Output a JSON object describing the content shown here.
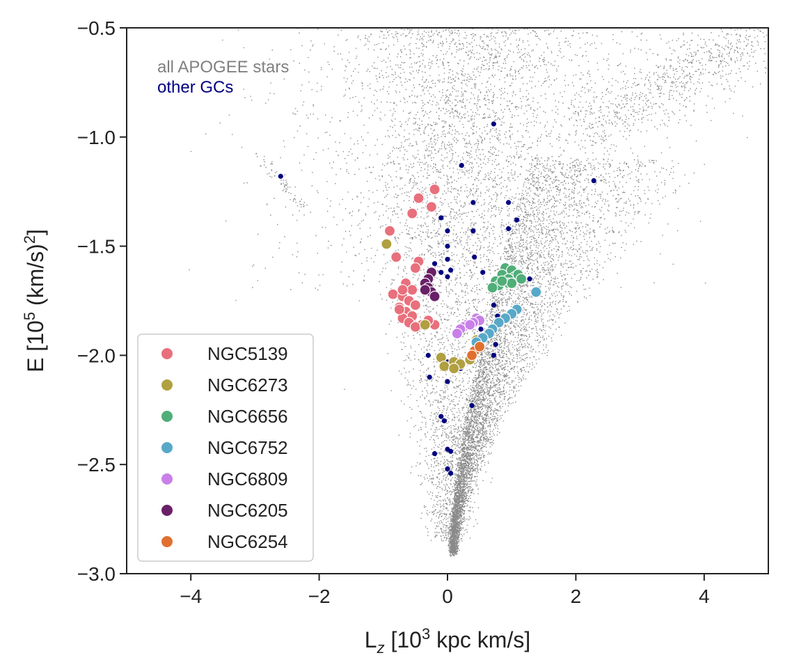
{
  "chart_data": {
    "type": "scatter",
    "xlabel_main": "L",
    "xlabel_sub": "z",
    "xlabel_rest": " [10",
    "xlabel_sup": "3",
    "xlabel_end": " kpc km/s]",
    "ylabel_main": "E [10",
    "ylabel_sup": "5",
    "ylabel_mid": " (km/s)",
    "ylabel_sup2": "2",
    "ylabel_end": "]",
    "xlim": [
      -5,
      5
    ],
    "ylim": [
      -3.0,
      -0.5
    ],
    "x_ticks": [
      -4,
      -2,
      0,
      2,
      4
    ],
    "x_tick_labels": [
      "−4",
      "−2",
      "0",
      "2",
      "4"
    ],
    "y_ticks": [
      -3.0,
      -2.5,
      -2.0,
      -1.5,
      -1.0,
      -0.5
    ],
    "y_tick_labels": [
      "−3.0",
      "−2.5",
      "−2.0",
      "−1.5",
      "−1.0",
      "−0.5"
    ],
    "grid": false,
    "background_label": {
      "text": "all APOGEE stars",
      "color": "#808080"
    },
    "other_label": {
      "text": "other GCs",
      "color": "#000080"
    },
    "legend_position": "lower-left",
    "other_gcs": {
      "name": "other GCs",
      "color": "#000080",
      "points": [
        [
          -2.6,
          -1.18
        ],
        [
          0.72,
          -0.94
        ],
        [
          2.28,
          -1.2
        ],
        [
          0.22,
          -1.13
        ],
        [
          -0.1,
          -1.37
        ],
        [
          0.4,
          -1.3
        ],
        [
          0.95,
          -1.3
        ],
        [
          1.08,
          -1.38
        ],
        [
          0.0,
          -1.43
        ],
        [
          0.4,
          -1.43
        ],
        [
          0.95,
          -1.42
        ],
        [
          0.0,
          -1.5
        ],
        [
          0.42,
          -1.55
        ],
        [
          0.0,
          -1.56
        ],
        [
          -0.2,
          -1.58
        ],
        [
          -0.1,
          -1.62
        ],
        [
          0.05,
          -1.61
        ],
        [
          0.0,
          -1.64
        ],
        [
          0.55,
          -1.62
        ],
        [
          1.28,
          -1.65
        ],
        [
          0.72,
          -1.77
        ],
        [
          0.78,
          -1.82
        ],
        [
          0.52,
          -1.88
        ],
        [
          0.42,
          -1.92
        ],
        [
          0.75,
          -1.95
        ],
        [
          0.72,
          -2.0
        ],
        [
          -0.3,
          -2.0
        ],
        [
          0.0,
          -2.03
        ],
        [
          0.2,
          -2.06
        ],
        [
          -0.28,
          -2.1
        ],
        [
          0.0,
          -2.12
        ],
        [
          0.38,
          -2.23
        ],
        [
          -0.1,
          -2.28
        ],
        [
          -0.05,
          -2.3
        ],
        [
          -0.2,
          -2.45
        ],
        [
          0.0,
          -2.43
        ],
        [
          0.05,
          -2.44
        ],
        [
          0.0,
          -2.52
        ],
        [
          0.05,
          -2.54
        ]
      ]
    },
    "series": [
      {
        "name": "NGC5139",
        "color": "#e8707c",
        "points": [
          [
            -0.2,
            -1.24
          ],
          [
            -0.45,
            -1.28
          ],
          [
            -0.25,
            -1.32
          ],
          [
            -0.55,
            -1.35
          ],
          [
            -0.9,
            -1.43
          ],
          [
            -0.8,
            -1.55
          ],
          [
            -0.45,
            -1.57
          ],
          [
            -0.5,
            -1.6
          ],
          [
            -0.65,
            -1.67
          ],
          [
            -0.55,
            -1.7
          ],
          [
            -0.85,
            -1.72
          ],
          [
            -0.7,
            -1.73
          ],
          [
            -0.6,
            -1.75
          ],
          [
            -0.75,
            -1.78
          ],
          [
            -0.65,
            -1.8
          ],
          [
            -0.55,
            -1.82
          ],
          [
            -0.7,
            -1.83
          ],
          [
            -0.6,
            -1.85
          ],
          [
            -0.4,
            -1.86
          ],
          [
            -0.2,
            -1.86
          ],
          [
            -0.3,
            -1.84
          ],
          [
            -0.5,
            -1.87
          ],
          [
            -0.75,
            -1.79
          ],
          [
            -0.5,
            -1.77
          ],
          [
            -0.7,
            -1.7
          ]
        ]
      },
      {
        "name": "NGC6273",
        "color": "#b0a040",
        "points": [
          [
            -0.95,
            -1.49
          ],
          [
            -0.35,
            -1.86
          ],
          [
            0.45,
            -1.93
          ],
          [
            -0.1,
            -2.01
          ],
          [
            0.1,
            -2.03
          ],
          [
            0.2,
            -2.04
          ],
          [
            -0.05,
            -2.05
          ],
          [
            0.35,
            -2.02
          ],
          [
            0.1,
            -2.06
          ]
        ]
      },
      {
        "name": "NGC6656",
        "color": "#50ae78",
        "points": [
          [
            0.9,
            -1.6
          ],
          [
            1.0,
            -1.61
          ],
          [
            0.85,
            -1.63
          ],
          [
            1.05,
            -1.64
          ],
          [
            0.95,
            -1.65
          ],
          [
            0.75,
            -1.66
          ],
          [
            1.1,
            -1.63
          ],
          [
            0.8,
            -1.68
          ],
          [
            0.95,
            -1.67
          ],
          [
            0.7,
            -1.69
          ],
          [
            1.0,
            -1.67
          ],
          [
            1.15,
            -1.65
          ],
          [
            0.85,
            -1.66
          ]
        ]
      },
      {
        "name": "NGC6752",
        "color": "#58a8c8",
        "points": [
          [
            1.38,
            -1.71
          ],
          [
            1.08,
            -1.79
          ],
          [
            1.0,
            -1.81
          ],
          [
            0.9,
            -1.83
          ],
          [
            0.8,
            -1.85
          ],
          [
            0.7,
            -1.88
          ],
          [
            0.65,
            -1.9
          ],
          [
            0.55,
            -1.92
          ],
          [
            0.45,
            -1.94
          ]
        ]
      },
      {
        "name": "NGC6809",
        "color": "#c880e8",
        "points": [
          [
            0.45,
            -1.83
          ],
          [
            0.5,
            -1.84
          ],
          [
            0.4,
            -1.85
          ],
          [
            0.3,
            -1.86
          ],
          [
            0.25,
            -1.87
          ],
          [
            0.2,
            -1.88
          ],
          [
            0.15,
            -1.9
          ],
          [
            0.35,
            -1.86
          ]
        ]
      },
      {
        "name": "NGC6205",
        "color": "#6a2068",
        "points": [
          [
            -0.25,
            -1.62
          ],
          [
            -0.3,
            -1.65
          ],
          [
            -0.35,
            -1.67
          ],
          [
            -0.3,
            -1.69
          ],
          [
            -0.25,
            -1.71
          ],
          [
            -0.2,
            -1.73
          ],
          [
            -0.35,
            -1.7
          ]
        ]
      },
      {
        "name": "NGC6254",
        "color": "#e07030",
        "points": [
          [
            0.42,
            -1.98
          ],
          [
            0.5,
            -1.96
          ],
          [
            0.38,
            -2.0
          ]
        ]
      }
    ]
  }
}
